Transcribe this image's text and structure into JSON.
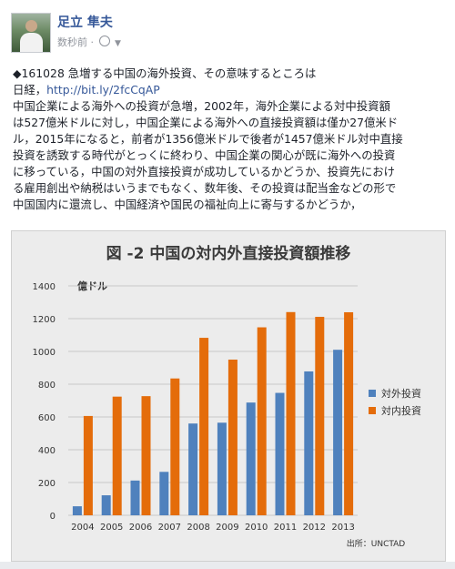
{
  "post": {
    "author": "足立 隼夫",
    "timestamp": "数秒前",
    "line1": "◆161028 急増する中国の海外投資、その意味するところは",
    "line2_prefix": "日経，",
    "link": "http://bit.ly/2fcCqAP",
    "lines": [
      "中国企業による海外への投資が急増，2002年，海外企業による対中投資額",
      "は527億米ドルに対し，中国企業による海外への直接投資額は僅か27億米ド",
      "ル，2015年になると，前者が1356億米ドルで後者が1457億米ドル対中直接",
      "投資を誘致する時代がとっくに終わり、中国企業の関心が既に海外への投資",
      "に移っている，中国の対外直接投資が成功しているかどうか、投資先におけ",
      "る雇用創出や納税はいうまでもなく、数年後、その投資は配当金などの形で",
      "中国国内に還流し、中国経済や国民の福祉向上に寄与するかどうか，"
    ]
  },
  "icons": [
    "avatar-photo",
    "globe-icon",
    "chevron-down-icon"
  ],
  "chart_data": {
    "type": "bar",
    "title": "図 -2  中国の対内外直接投資額推移",
    "unit_label": "億ドル",
    "source": "出所：UNCTAD",
    "categories": [
      "2004",
      "2005",
      "2006",
      "2007",
      "2008",
      "2009",
      "2010",
      "2011",
      "2012",
      "2013"
    ],
    "yticks": [
      "0",
      "200",
      "400",
      "600",
      "800",
      "1000",
      "1200",
      "1400"
    ],
    "ylim": [
      0,
      1400
    ],
    "grid": true,
    "legend_position": "right",
    "series": [
      {
        "name": "対外投資",
        "color": "#4f81bd",
        "values": [
          55,
          122,
          212,
          265,
          560,
          565,
          688,
          747,
          878,
          1010
        ]
      },
      {
        "name": "対内投資",
        "color": "#e46c0a",
        "values": [
          606,
          724,
          727,
          835,
          1083,
          950,
          1147,
          1240,
          1211,
          1239
        ]
      }
    ]
  }
}
